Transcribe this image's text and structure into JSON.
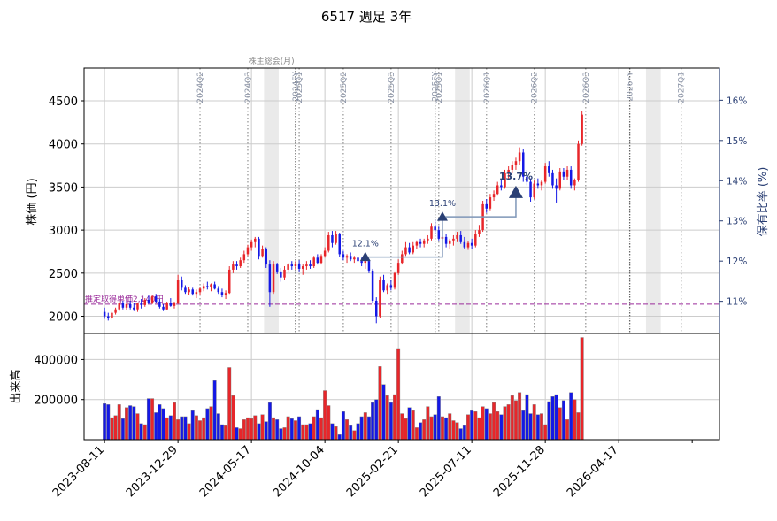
{
  "chart_data": {
    "type": "candlestick",
    "title": "6517 週足 3年",
    "ylabel_price": "株価 (円)",
    "ylabel_ratio": "保有比率 (%)",
    "ylabel_volume": "出来高",
    "price_axis": {
      "ylim": [
        1800,
        4880
      ],
      "ticks": [
        2000,
        2500,
        3000,
        3500,
        4000,
        4500
      ]
    },
    "ratio_axis": {
      "ylim": [
        10.2,
        16.8
      ],
      "ticks": [
        "11%",
        "12%",
        "13%",
        "14%",
        "15%",
        "16%"
      ],
      "tick_values": [
        11,
        12,
        13,
        14,
        15,
        16
      ]
    },
    "volume_axis": {
      "ylim": [
        0,
        530000
      ],
      "ticks": [
        200000,
        400000
      ]
    },
    "x_axis": {
      "start": "2023-07-03",
      "end": "2026-10-26",
      "tick_labels": [
        "2023-08-11",
        "2023-12-29",
        "2024-05-17",
        "2024-10-04",
        "2025-02-21",
        "2025-07-11",
        "2025-11-28",
        "2026-04-17"
      ],
      "tick_dates": [
        "2023-08-11",
        "2023-12-29",
        "2024-05-17",
        "2024-10-04",
        "2025-02-21",
        "2025-07-11",
        "2025-11-28",
        "2026-04-17"
      ]
    },
    "grid": true,
    "colors": {
      "up": "#e8262a",
      "down": "#1418e6",
      "ratio_line": "#7f96b8",
      "marker": "#2a3f74",
      "avg_price": "#9a2b9a",
      "event_band": "#d9d9d9",
      "event_line": "#666666"
    },
    "avg_price_line": {
      "value": 2140,
      "label": "推定取得単価2,140円"
    },
    "event_bands": [
      {
        "start": "2024-06-10",
        "end": "2024-07-08",
        "label": "株主総会(月)"
      },
      {
        "start": "2025-06-09",
        "end": "2025-07-07",
        "label": ""
      },
      {
        "start": "2026-06-08",
        "end": "2026-07-06",
        "label": ""
      }
    ],
    "report_lines": [
      {
        "date": "2024-02-09",
        "label": "2024Q2",
        "style": "dotted"
      },
      {
        "date": "2024-05-10",
        "label": "2024Q3",
        "style": "dotted"
      },
      {
        "date": "2024-08-09",
        "label": "2024FY",
        "style": "solid"
      },
      {
        "date": "2024-08-16",
        "label": "2025Q1",
        "style": "dotted"
      },
      {
        "date": "2024-11-08",
        "label": "2025Q2",
        "style": "dotted"
      },
      {
        "date": "2025-02-07",
        "label": "2025Q3",
        "style": "dotted"
      },
      {
        "date": "2025-05-02",
        "label": "2025FY",
        "style": "solid"
      },
      {
        "date": "2025-05-09",
        "label": "2025Q1",
        "style": "dotted"
      },
      {
        "date": "2025-08-08",
        "label": "2026Q1",
        "style": "dotted"
      },
      {
        "date": "2025-11-07",
        "label": "2026Q2",
        "style": "dotted"
      },
      {
        "date": "2026-02-13",
        "label": "2026Q3",
        "style": "dotted"
      },
      {
        "date": "2026-05-08",
        "label": "2026FY",
        "style": "solid"
      },
      {
        "date": "2026-08-14",
        "label": "2027Q1",
        "style": "dotted"
      }
    ],
    "holding_ratio": [
      {
        "date": "2024-12-20",
        "ratio": 12.1,
        "label": "12.1%"
      },
      {
        "date": "2025-05-16",
        "ratio": 13.1,
        "label": "13.1%"
      },
      {
        "date": "2025-10-03",
        "ratio": 13.7,
        "label": "13.7%"
      }
    ],
    "ohlcv": [
      [
        2050,
        2100,
        1970,
        2000,
        180000
      ],
      [
        2000,
        2040,
        1950,
        1980,
        175000
      ],
      [
        1980,
        2060,
        1960,
        2040,
        110000
      ],
      [
        2040,
        2100,
        2020,
        2080,
        120000
      ],
      [
        2080,
        2180,
        2060,
        2150,
        175000
      ],
      [
        2150,
        2180,
        2080,
        2100,
        105000
      ],
      [
        2100,
        2160,
        2070,
        2140,
        160000
      ],
      [
        2140,
        2180,
        2080,
        2100,
        170000
      ],
      [
        2100,
        2150,
        2060,
        2080,
        165000
      ],
      [
        2080,
        2160,
        2050,
        2150,
        130000
      ],
      [
        2150,
        2200,
        2090,
        2130,
        80000
      ],
      [
        2130,
        2210,
        2110,
        2190,
        75000
      ],
      [
        2190,
        2240,
        2140,
        2160,
        205000
      ],
      [
        2160,
        2250,
        2140,
        2230,
        205000
      ],
      [
        2230,
        2260,
        2150,
        2170,
        135000
      ],
      [
        2170,
        2200,
        2090,
        2110,
        175000
      ],
      [
        2110,
        2140,
        2060,
        2080,
        155000
      ],
      [
        2080,
        2170,
        2070,
        2150,
        110000
      ],
      [
        2150,
        2210,
        2110,
        2120,
        120000
      ],
      [
        2120,
        2170,
        2090,
        2150,
        185000
      ],
      [
        2150,
        2480,
        2140,
        2420,
        100000
      ],
      [
        2420,
        2460,
        2300,
        2330,
        115000
      ],
      [
        2330,
        2360,
        2260,
        2280,
        115000
      ],
      [
        2280,
        2340,
        2250,
        2310,
        80000
      ],
      [
        2310,
        2330,
        2240,
        2260,
        145000
      ],
      [
        2260,
        2310,
        2210,
        2280,
        120000
      ],
      [
        2280,
        2330,
        2250,
        2320,
        95000
      ],
      [
        2320,
        2380,
        2290,
        2350,
        110000
      ],
      [
        2350,
        2400,
        2310,
        2340,
        155000
      ],
      [
        2340,
        2380,
        2290,
        2370,
        165000
      ],
      [
        2370,
        2400,
        2310,
        2320,
        295000
      ],
      [
        2320,
        2350,
        2260,
        2280,
        130000
      ],
      [
        2280,
        2320,
        2220,
        2250,
        75000
      ],
      [
        2250,
        2300,
        2200,
        2270,
        70000
      ],
      [
        2270,
        2580,
        2260,
        2540,
        360000
      ],
      [
        2540,
        2640,
        2500,
        2600,
        220000
      ],
      [
        2600,
        2640,
        2540,
        2580,
        60000
      ],
      [
        2580,
        2680,
        2560,
        2650,
        55000
      ],
      [
        2650,
        2760,
        2620,
        2720,
        100000
      ],
      [
        2720,
        2830,
        2700,
        2800,
        110000
      ],
      [
        2800,
        2890,
        2760,
        2860,
        105000
      ],
      [
        2860,
        2920,
        2800,
        2900,
        120000
      ],
      [
        2900,
        2920,
        2660,
        2700,
        80000
      ],
      [
        2700,
        2820,
        2680,
        2780,
        125000
      ],
      [
        2780,
        2800,
        2560,
        2600,
        90000
      ],
      [
        2600,
        2650,
        2110,
        2280,
        185000
      ],
      [
        2280,
        2640,
        2260,
        2600,
        110000
      ],
      [
        2600,
        2620,
        2490,
        2520,
        100000
      ],
      [
        2520,
        2560,
        2400,
        2450,
        55000
      ],
      [
        2450,
        2580,
        2420,
        2540,
        60000
      ],
      [
        2540,
        2620,
        2510,
        2600,
        115000
      ],
      [
        2600,
        2640,
        2540,
        2580,
        105000
      ],
      [
        2580,
        2640,
        2540,
        2610,
        95000
      ],
      [
        2610,
        2650,
        2520,
        2550,
        115000
      ],
      [
        2550,
        2600,
        2480,
        2580,
        75000
      ],
      [
        2580,
        2640,
        2540,
        2600,
        75000
      ],
      [
        2600,
        2650,
        2550,
        2580,
        80000
      ],
      [
        2580,
        2700,
        2560,
        2680,
        115000
      ],
      [
        2680,
        2720,
        2600,
        2620,
        150000
      ],
      [
        2620,
        2720,
        2600,
        2700,
        110000
      ],
      [
        2700,
        2800,
        2680,
        2760,
        245000
      ],
      [
        2760,
        2980,
        2740,
        2940,
        170000
      ],
      [
        2940,
        2990,
        2800,
        2850,
        80000
      ],
      [
        2850,
        2990,
        2830,
        2950,
        65000
      ],
      [
        2950,
        2970,
        2690,
        2720,
        25000
      ],
      [
        2720,
        2760,
        2650,
        2680,
        140000
      ],
      [
        2680,
        2720,
        2620,
        2700,
        100000
      ],
      [
        2700,
        2740,
        2640,
        2660,
        70000
      ],
      [
        2660,
        2700,
        2620,
        2680,
        45000
      ],
      [
        2680,
        2720,
        2600,
        2640,
        80000
      ],
      [
        2640,
        2680,
        2580,
        2620,
        115000
      ],
      [
        2620,
        2660,
        2550,
        2640,
        135000
      ],
      [
        2640,
        2660,
        2500,
        2530,
        115000
      ],
      [
        2530,
        2550,
        2160,
        2180,
        185000
      ],
      [
        2180,
        2220,
        1920,
        2000,
        200000
      ],
      [
        2000,
        2460,
        1980,
        2420,
        365000
      ],
      [
        2420,
        2480,
        2280,
        2300,
        275000
      ],
      [
        2300,
        2380,
        2260,
        2360,
        220000
      ],
      [
        2360,
        2420,
        2300,
        2330,
        185000
      ],
      [
        2330,
        2520,
        2310,
        2500,
        225000
      ],
      [
        2500,
        2660,
        2480,
        2620,
        455000
      ],
      [
        2620,
        2760,
        2600,
        2720,
        130000
      ],
      [
        2720,
        2860,
        2700,
        2800,
        105000
      ],
      [
        2800,
        2850,
        2720,
        2740,
        160000
      ],
      [
        2740,
        2860,
        2720,
        2820,
        145000
      ],
      [
        2820,
        2880,
        2780,
        2860,
        60000
      ],
      [
        2860,
        2900,
        2800,
        2840,
        85000
      ],
      [
        2840,
        2900,
        2800,
        2880,
        100000
      ],
      [
        2880,
        2940,
        2840,
        2900,
        165000
      ],
      [
        2900,
        3080,
        2880,
        3040,
        115000
      ],
      [
        3040,
        3120,
        2960,
        3000,
        125000
      ],
      [
        3000,
        3040,
        2880,
        2900,
        215000
      ],
      [
        2900,
        2960,
        2840,
        2920,
        115000
      ],
      [
        2920,
        2960,
        2800,
        2840,
        110000
      ],
      [
        2840,
        2900,
        2780,
        2880,
        130000
      ],
      [
        2880,
        2940,
        2820,
        2900,
        95000
      ],
      [
        2900,
        2980,
        2860,
        2940,
        85000
      ],
      [
        2940,
        2990,
        2840,
        2860,
        55000
      ],
      [
        2860,
        2920,
        2780,
        2800,
        70000
      ],
      [
        2800,
        2870,
        2770,
        2850,
        125000
      ],
      [
        2850,
        2900,
        2780,
        2820,
        145000
      ],
      [
        2820,
        3000,
        2800,
        2960,
        140000
      ],
      [
        2960,
        3060,
        2920,
        3000,
        110000
      ],
      [
        3000,
        3340,
        2980,
        3300,
        165000
      ],
      [
        3300,
        3360,
        3200,
        3250,
        155000
      ],
      [
        3250,
        3420,
        3230,
        3380,
        130000
      ],
      [
        3380,
        3460,
        3340,
        3420,
        185000
      ],
      [
        3420,
        3560,
        3400,
        3520,
        140000
      ],
      [
        3520,
        3580,
        3460,
        3500,
        125000
      ],
      [
        3500,
        3700,
        3480,
        3660,
        165000
      ],
      [
        3660,
        3740,
        3600,
        3700,
        175000
      ],
      [
        3700,
        3800,
        3660,
        3760,
        220000
      ],
      [
        3760,
        3840,
        3700,
        3800,
        195000
      ],
      [
        3800,
        3960,
        3760,
        3900,
        235000
      ],
      [
        3900,
        3940,
        3560,
        3620,
        145000
      ],
      [
        3620,
        3700,
        3520,
        3560,
        225000
      ],
      [
        3560,
        3600,
        3330,
        3380,
        130000
      ],
      [
        3380,
        3580,
        3360,
        3540,
        175000
      ],
      [
        3540,
        3600,
        3480,
        3520,
        125000
      ],
      [
        3520,
        3580,
        3460,
        3560,
        130000
      ],
      [
        3560,
        3780,
        3540,
        3740,
        75000
      ],
      [
        3740,
        3800,
        3620,
        3660,
        190000
      ],
      [
        3660,
        3700,
        3480,
        3520,
        215000
      ],
      [
        3520,
        3600,
        3320,
        3480,
        225000
      ],
      [
        3480,
        3720,
        3460,
        3680,
        160000
      ],
      [
        3680,
        3720,
        3580,
        3620,
        195000
      ],
      [
        3620,
        3740,
        3580,
        3700,
        100000
      ],
      [
        3700,
        3740,
        3480,
        3520,
        235000
      ],
      [
        3520,
        3600,
        3460,
        3580,
        200000
      ],
      [
        3580,
        4040,
        3560,
        4000,
        135000
      ],
      [
        4000,
        4380,
        3980,
        4340,
        510000
      ]
    ]
  }
}
